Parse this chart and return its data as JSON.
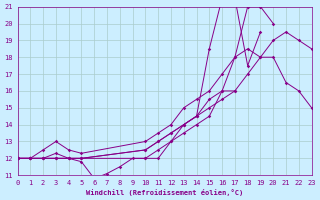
{
  "xlabel": "Windchill (Refroidissement éolien,°C)",
  "bg_color": "#cceeff",
  "grid_color": "#aacccc",
  "line_color": "#880088",
  "xmin": 0,
  "xmax": 23,
  "ymin": 11,
  "ymax": 21,
  "series": [
    {
      "x": [
        0,
        1,
        2,
        3,
        4,
        5,
        6,
        7,
        8,
        9,
        10,
        11,
        12,
        13,
        14,
        15,
        16,
        17
      ],
      "y": [
        12,
        12,
        12,
        12.3,
        12,
        11.8,
        10.8,
        11.1,
        11.5,
        12,
        12,
        12,
        13,
        14,
        14.5,
        15.5,
        16,
        16
      ]
    },
    {
      "x": [
        0,
        1,
        2,
        3,
        4,
        5,
        10,
        11,
        12,
        13,
        14,
        15,
        16,
        17,
        18,
        19,
        20,
        21,
        22,
        23
      ],
      "y": [
        12,
        12,
        12.5,
        13,
        12.5,
        12.3,
        13,
        13.5,
        14,
        15,
        15.5,
        16,
        17,
        18,
        18.5,
        18,
        18,
        16.5,
        16,
        15
      ]
    },
    {
      "x": [
        0,
        1,
        2,
        3,
        4,
        5,
        10,
        11,
        12,
        13,
        14,
        15,
        16,
        17,
        18,
        19,
        20,
        21,
        22,
        23
      ],
      "y": [
        12,
        12,
        12,
        12,
        12,
        12,
        12.5,
        13,
        13.5,
        14,
        14.5,
        15,
        15.5,
        16,
        17,
        18,
        19,
        19.5,
        19,
        18.5
      ]
    },
    {
      "x": [
        0,
        1,
        2,
        3,
        4,
        5,
        10,
        11,
        12,
        13,
        14,
        15,
        16,
        17,
        18,
        19,
        20
      ],
      "y": [
        12,
        12,
        12,
        12,
        12,
        12,
        12,
        12.5,
        13,
        13.5,
        14,
        14.5,
        16,
        18,
        21,
        21,
        20
      ]
    },
    {
      "x": [
        0,
        1,
        2,
        3,
        4,
        5,
        10,
        11,
        12,
        13,
        14,
        15,
        16,
        17,
        18,
        19
      ],
      "y": [
        12,
        12,
        12,
        12,
        12,
        12,
        12.5,
        13,
        13.5,
        14,
        14.5,
        18.5,
        21.5,
        21.5,
        17.5,
        19.5
      ]
    }
  ]
}
